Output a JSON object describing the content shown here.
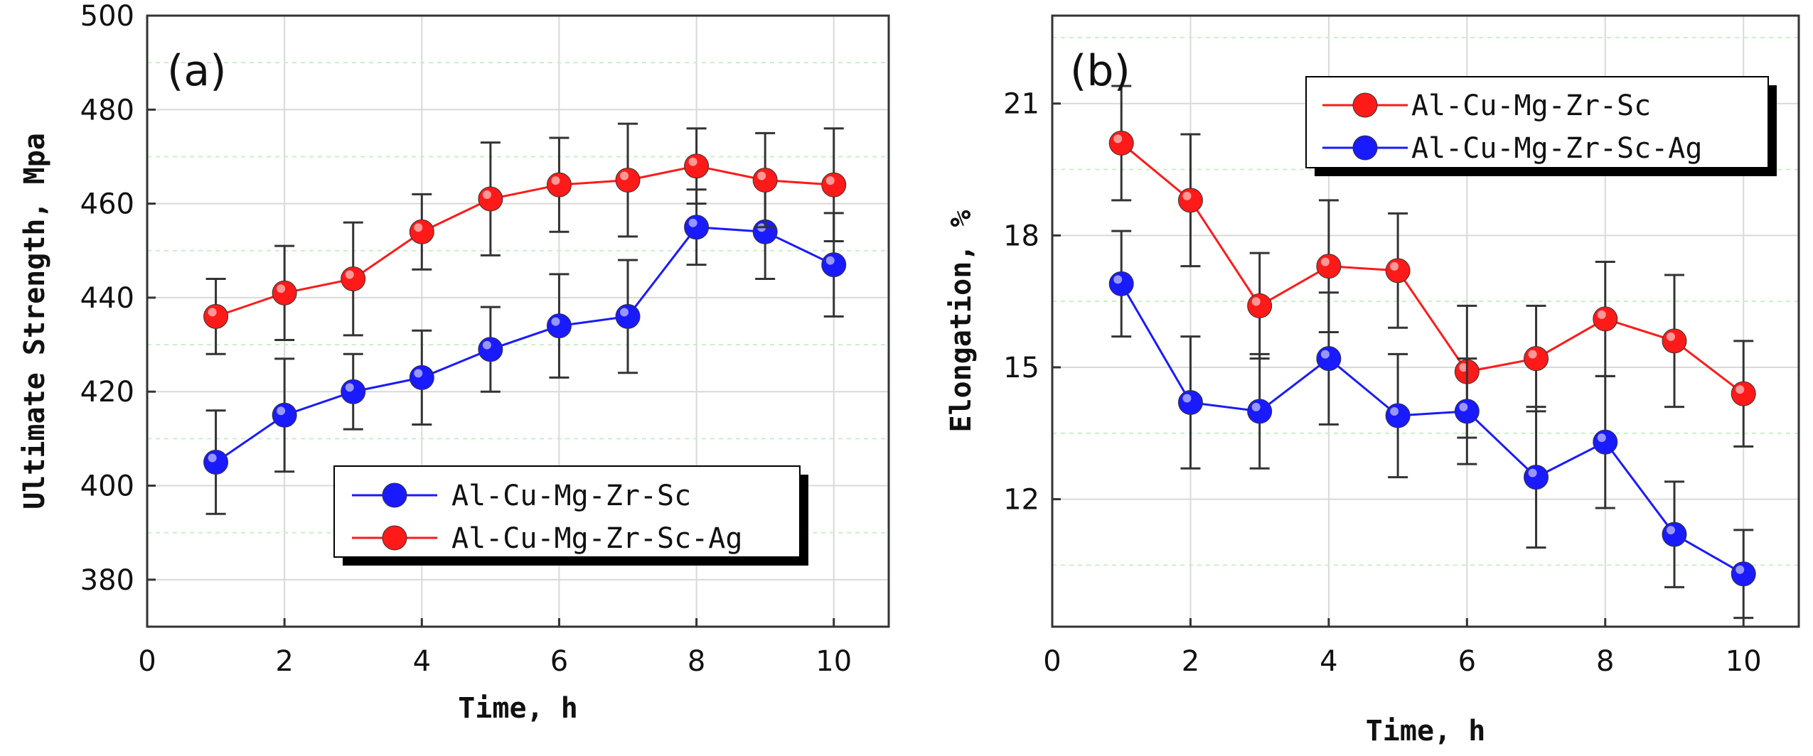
{
  "chart_data": [
    {
      "type": "line",
      "panel_label": "(a)",
      "xlabel": "Time, h",
      "ylabel": "Ultimate Strength, Mpa",
      "xlim": [
        0,
        10.8
      ],
      "ylim": [
        370,
        500
      ],
      "xticks": [
        0,
        2,
        4,
        6,
        8,
        10
      ],
      "yticks": [
        380,
        400,
        420,
        440,
        460,
        480,
        500
      ],
      "grid": true,
      "legend_position": "lower-right",
      "series": [
        {
          "name": "Al-Cu-Mg-Zr-Sc",
          "color": "#1a1aff",
          "x": [
            1,
            2,
            3,
            4,
            5,
            6,
            7,
            8,
            9,
            10
          ],
          "values": [
            405,
            415,
            420,
            423,
            429,
            434,
            436,
            455,
            454,
            447
          ],
          "error": [
            11,
            12,
            8,
            10,
            9,
            11,
            12,
            8,
            10,
            11
          ]
        },
        {
          "name": "Al-Cu-Mg-Zr-Sc-Ag",
          "color": "#ff1a1a",
          "x": [
            1,
            2,
            3,
            4,
            5,
            6,
            7,
            8,
            9,
            10
          ],
          "values": [
            436,
            441,
            444,
            454,
            461,
            464,
            465,
            468,
            465,
            464
          ],
          "error": [
            8,
            10,
            12,
            8,
            12,
            10,
            12,
            8,
            10,
            12
          ]
        }
      ]
    },
    {
      "type": "line",
      "panel_label": "(b)",
      "xlabel": "Time, h",
      "ylabel": "Elongation, %",
      "xlim": [
        0,
        10.8
      ],
      "ylim": [
        9.1,
        23
      ],
      "xticks": [
        0,
        2,
        4,
        6,
        8,
        10
      ],
      "yticks": [
        12,
        15,
        18,
        21
      ],
      "grid": true,
      "legend_position": "top-right",
      "series": [
        {
          "name": "Al-Cu-Mg-Zr-Sc",
          "color": "#ff1a1a",
          "x": [
            1,
            2,
            3,
            4,
            5,
            6,
            7,
            8,
            9,
            10
          ],
          "values": [
            20.1,
            18.8,
            16.4,
            17.3,
            17.2,
            14.9,
            15.2,
            16.1,
            15.6,
            14.4
          ],
          "error": [
            1.3,
            1.5,
            1.2,
            1.5,
            1.3,
            1.5,
            1.2,
            1.3,
            1.5,
            1.2
          ]
        },
        {
          "name": "Al-Cu-Mg-Zr-Sc-Ag",
          "color": "#1a1aff",
          "x": [
            1,
            2,
            3,
            4,
            5,
            6,
            7,
            8,
            9,
            10
          ],
          "values": [
            16.9,
            14.2,
            14.0,
            15.2,
            13.9,
            14.0,
            12.5,
            13.3,
            11.2,
            10.3
          ],
          "error": [
            1.2,
            1.5,
            1.3,
            1.5,
            1.4,
            1.2,
            1.6,
            1.5,
            1.2,
            1.0
          ]
        }
      ]
    }
  ]
}
